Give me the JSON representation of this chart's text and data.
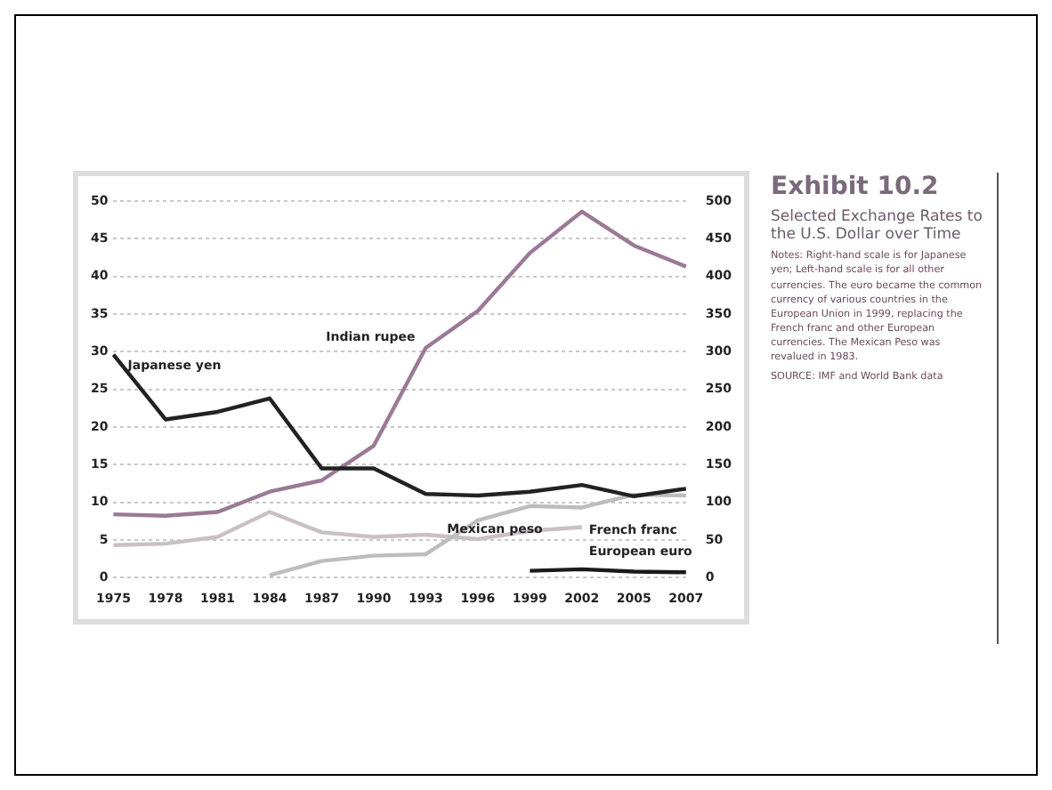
{
  "chart_data": {
    "type": "line",
    "title": "Exhibit 10.2",
    "subtitle": "Selected Exchange Rates to the U.S. Dollar over Time",
    "annotations": [
      "Notes: Right-hand scale is for Japanese yen; Left-hand scale is for all other currencies. The euro became the common currency of various countries in the European Union in 1999, replacing the French franc and other European currencies. The Mexican Peso was revalued in 1983.",
      "SOURCE: IMF and World Bank data"
    ],
    "categories": [
      "1975",
      "1978",
      "1981",
      "1984",
      "1987",
      "1990",
      "1993",
      "1996",
      "1999",
      "2002",
      "2005",
      "2007"
    ],
    "series": [
      {
        "name": "Japanese yen",
        "color": "#222222",
        "axis": "y2",
        "values": [
          296,
          210,
          220,
          238,
          145,
          145,
          111,
          109,
          114,
          123,
          108,
          118
        ]
      },
      {
        "name": "Indian rupee",
        "color": "#9a7a96",
        "values": [
          8.4,
          8.2,
          8.7,
          11.4,
          12.9,
          17.5,
          30.5,
          35.4,
          43.1,
          48.6,
          44.1,
          41.3
        ]
      },
      {
        "name": "Mexican peso",
        "color": "#bdbdbd",
        "values": [
          null,
          null,
          null,
          0.3,
          2.2,
          2.9,
          3.1,
          7.6,
          9.5,
          9.3,
          11,
          10.9
        ]
      },
      {
        "name": "French franc",
        "color": "#c9c0c6",
        "values": [
          4.3,
          4.5,
          5.4,
          8.7,
          6,
          5.4,
          5.7,
          5.1,
          6.2,
          6.7,
          null,
          null
        ]
      },
      {
        "name": "European euro",
        "color": "#1a1a1a",
        "values": [
          null,
          null,
          null,
          null,
          null,
          null,
          null,
          null,
          0.9,
          1.1,
          0.8,
          0.7
        ]
      }
    ],
    "ylim": [
      0,
      50
    ],
    "yticks": [
      0,
      5,
      10,
      15,
      20,
      25,
      30,
      35,
      40,
      45,
      50
    ],
    "y2lim": [
      0,
      500
    ],
    "y2ticks": [
      0,
      50,
      100,
      150,
      200,
      250,
      300,
      350,
      400,
      450,
      500
    ],
    "grid": "y",
    "legend": false,
    "marker": "none",
    "line_style": "solid"
  }
}
